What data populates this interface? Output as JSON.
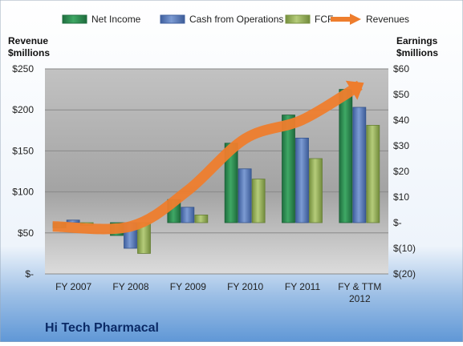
{
  "chart_data": {
    "type": "bar",
    "title": "Hi Tech Pharmacal",
    "legend": [
      "Net Income",
      "Cash from Operations",
      "FCF",
      "Revenues"
    ],
    "legend_position": "top",
    "categories": [
      "FY 2007",
      "FY 2008",
      "FY 2009",
      "FY 2010",
      "FY 2011",
      "FY & TTM|2012"
    ],
    "left_axis": {
      "label_line1": "Revenue",
      "label_line2": "$millions",
      "ylim": [
        0,
        250
      ],
      "ticks": [
        {
          "value": 0,
          "label": "$-"
        },
        {
          "value": 50,
          "label": "$50"
        },
        {
          "value": 100,
          "label": "$100"
        },
        {
          "value": 150,
          "label": "$150"
        },
        {
          "value": 200,
          "label": "$200"
        },
        {
          "value": 250,
          "label": "$250"
        }
      ]
    },
    "right_axis": {
      "label_line1": "Earnings",
      "label_line2": "$millions",
      "ylim": [
        -20,
        60
      ],
      "ticks": [
        {
          "value": -20,
          "label": "$(20)"
        },
        {
          "value": -10,
          "label": "$(10)"
        },
        {
          "value": 0,
          "label": "$-"
        },
        {
          "value": 10,
          "label": "$10"
        },
        {
          "value": 20,
          "label": "$20"
        },
        {
          "value": 30,
          "label": "$30"
        },
        {
          "value": 40,
          "label": "$40"
        },
        {
          "value": 50,
          "label": "$50"
        },
        {
          "value": 60,
          "label": "$60"
        }
      ]
    },
    "series": [
      {
        "name": "Net Income",
        "type": "bar",
        "axis": "right",
        "color": "#2e8b57",
        "values": [
          -2,
          -5,
          9,
          31,
          42,
          52
        ]
      },
      {
        "name": "Cash from Operations",
        "type": "bar",
        "axis": "right",
        "color": "#5b7dbb",
        "values": [
          1,
          -10,
          6,
          21,
          33,
          45
        ]
      },
      {
        "name": "FCF",
        "type": "bar",
        "axis": "right",
        "color": "#9bb25c",
        "values": [
          -1,
          -12,
          3,
          17,
          25,
          38
        ]
      },
      {
        "name": "Revenues",
        "type": "line",
        "axis": "left",
        "color": "#ee7d2d",
        "values": [
          58,
          58,
          102,
          165,
          188,
          230
        ]
      }
    ],
    "grid": true
  }
}
